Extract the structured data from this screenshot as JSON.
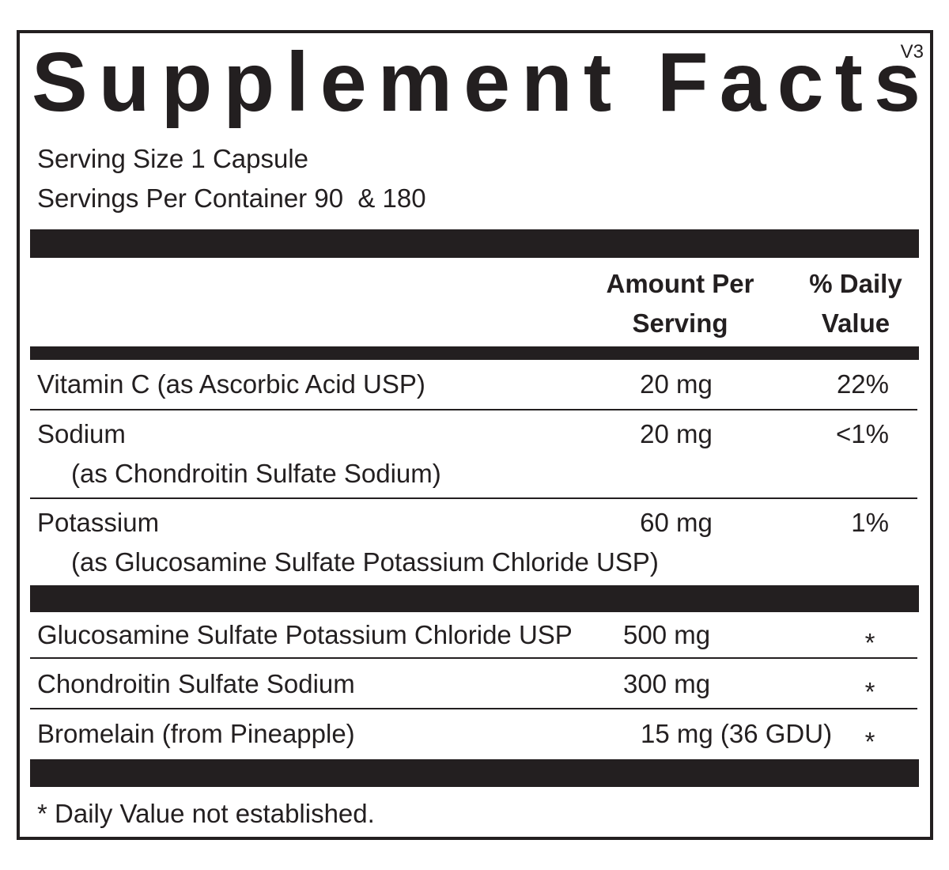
{
  "header": {
    "title": "Supplement Facts",
    "version": "V3"
  },
  "serving_size": "Serving Size 1 Capsule",
  "servings_per_container": "Servings Per Container 90  & 180",
  "table": {
    "columns": [
      [
        "Amount Per",
        "Serving"
      ],
      [
        "% Daily",
        "Value"
      ]
    ],
    "vitamins": [
      {
        "name": "Vitamin C (as Ascorbic Acid USP)",
        "amount": "20 mg",
        "daily_value": "22%"
      },
      {
        "name": "Sodium",
        "source": "(as Chondroitin Sulfate Sodium)",
        "amount": "20 mg",
        "daily_value": "<1%"
      },
      {
        "name": "Potassium",
        "source": "(as Glucosamine Sulfate Potassium Chloride USP)",
        "amount": "60 mg",
        "daily_value": "1%"
      }
    ],
    "other": [
      {
        "name": "Glucosamine Sulfate Potassium Chloride USP",
        "amount": "500 mg",
        "daily_value": "*"
      },
      {
        "name": "Chondroitin Sulfate Sodium",
        "amount": "300 mg",
        "daily_value": "*"
      },
      {
        "name": "Bromelain (from Pineapple)",
        "amount": "15 mg (36 GDU)",
        "daily_value": "*"
      }
    ]
  },
  "footnote": "* Daily Value not established."
}
